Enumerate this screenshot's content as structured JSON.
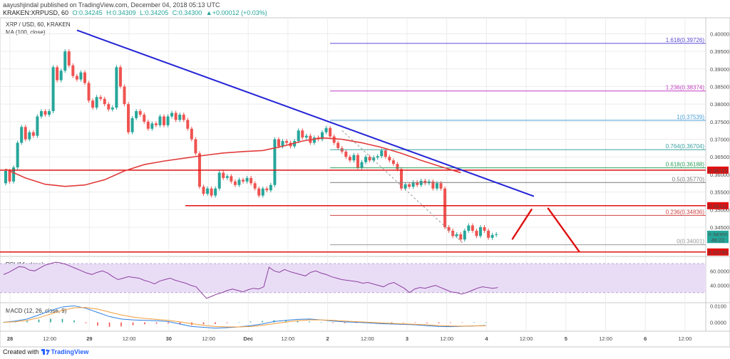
{
  "header": {
    "publisher_line": "aayushjindal published on TradingView.com, December 04, 2018 05:13 UTC",
    "symbol_line": "KRAKEN:XRPUSD, 60",
    "open": "O:0.34245",
    "high": "H:0.34309",
    "low": "L:0.34205",
    "close": "C:0.34300",
    "change": "▲+0.00012 (+0.03%)"
  },
  "legend": {
    "title": "XRP / USD, 60, KRAKEN",
    "ma": "MA (100, close)",
    "rsi": "RSI (14, close)",
    "macd": "MACD (12, 26, close, 9)"
  },
  "footer": {
    "created_with": "Created with",
    "brand": "TradingView"
  },
  "colors": {
    "up": "#26a69a",
    "down": "#ef5350",
    "trendline": "#2323d6",
    "ma": "#e23b3b",
    "support": "#e01010",
    "rsi_band": "#e9ddf6",
    "rsi_line": "#8d3fa0",
    "macd_line": "#2d7fe0",
    "signal_line": "#f39c3a"
  },
  "chart_data": [
    {
      "type": "candlestick",
      "title": "XRP / USD, 60, KRAKEN",
      "x_ticks": [
        "28",
        "12:00",
        "29",
        "12:00",
        "30",
        "12:00",
        "Dec",
        "12:00",
        "2",
        "12:00",
        "3",
        "12:00",
        "4",
        "12:00",
        "5",
        "12:00",
        "6",
        "12:00"
      ],
      "y_ticks": [
        "0.40000",
        "0.39500",
        "0.39000",
        "0.38500",
        "0.38000",
        "0.37500",
        "0.37000",
        "0.36500",
        "0.36000",
        "0.35500",
        "0.35000",
        "0.34500"
      ],
      "ylim": [
        0.3375,
        0.4015
      ],
      "price_labels": [
        {
          "text": "0.36123",
          "value": 0.36123
        },
        {
          "text": "0.35111",
          "value": 0.35111
        },
        {
          "text": "0.34300",
          "value": 0.343
        },
        {
          "text": "46:22",
          "value": 0.3415
        },
        {
          "text": "0.33795",
          "value": 0.33795
        }
      ],
      "fib_levels": [
        {
          "label": "1.618",
          "value": "0.39726"
        },
        {
          "label": "1.236",
          "value": "0.38374"
        },
        {
          "label": "1",
          "value": "0.37539"
        },
        {
          "label": "0.764",
          "value": "0.36704"
        },
        {
          "label": "0.618",
          "value": "0.36188"
        },
        {
          "label": "0.5",
          "value": "0.35770"
        },
        {
          "label": "0.236",
          "value": "0.34836"
        },
        {
          "label": "0",
          "value": "0.34001"
        }
      ],
      "horizontal_lines": [
        0.36123,
        0.35111,
        0.33795
      ],
      "trendline": [
        [
          0.0,
          0.401
        ],
        [
          133.5,
          0.3538
        ]
      ],
      "moving_average": [
        [
          0,
          0.3615
        ],
        [
          5,
          0.359
        ],
        [
          10,
          0.3572
        ],
        [
          15,
          0.3566
        ],
        [
          20,
          0.357
        ],
        [
          25,
          0.3585
        ],
        [
          30,
          0.361
        ],
        [
          35,
          0.3628
        ],
        [
          40,
          0.3638
        ],
        [
          45,
          0.3646
        ],
        [
          50,
          0.3654
        ],
        [
          55,
          0.3661
        ],
        [
          60,
          0.3665
        ],
        [
          65,
          0.3668
        ],
        [
          70,
          0.368
        ],
        [
          75,
          0.3695
        ],
        [
          80,
          0.3704
        ],
        [
          85,
          0.37
        ],
        [
          90,
          0.369
        ],
        [
          95,
          0.3677
        ],
        [
          100,
          0.366
        ],
        [
          105,
          0.364
        ],
        [
          110,
          0.3622
        ],
        [
          115,
          0.3605
        ]
      ],
      "candles": [
        [
          0,
          0.3575,
          0.361
        ],
        [
          1,
          0.361,
          0.358
        ],
        [
          2,
          0.358,
          0.362
        ],
        [
          3,
          0.362,
          0.369
        ],
        [
          4,
          0.369,
          0.3735
        ],
        [
          5,
          0.3735,
          0.37
        ],
        [
          6,
          0.37,
          0.372
        ],
        [
          7,
          0.372,
          0.371
        ],
        [
          8,
          0.371,
          0.3765
        ],
        [
          9,
          0.3765,
          0.378
        ],
        [
          10,
          0.378,
          0.377
        ],
        [
          11,
          0.377,
          0.378
        ],
        [
          12,
          0.378,
          0.3905
        ],
        [
          13,
          0.3905,
          0.3868
        ],
        [
          14,
          0.3868,
          0.3895
        ],
        [
          15,
          0.3895,
          0.395
        ],
        [
          16,
          0.395,
          0.391
        ],
        [
          17,
          0.391,
          0.388
        ],
        [
          18,
          0.388,
          0.387
        ],
        [
          19,
          0.387,
          0.389
        ],
        [
          20,
          0.389,
          0.386
        ],
        [
          21,
          0.386,
          0.381
        ],
        [
          22,
          0.381,
          0.379
        ],
        [
          23,
          0.379,
          0.382
        ],
        [
          24,
          0.382,
          0.3815
        ],
        [
          25,
          0.3815,
          0.38
        ],
        [
          26,
          0.38,
          0.3785
        ],
        [
          27,
          0.3785,
          0.379
        ],
        [
          28,
          0.379,
          0.3905
        ],
        [
          29,
          0.3905,
          0.385
        ],
        [
          30,
          0.385,
          0.38
        ],
        [
          31,
          0.38,
          0.372
        ],
        [
          32,
          0.372,
          0.376
        ],
        [
          33,
          0.376,
          0.378
        ],
        [
          34,
          0.378,
          0.377
        ],
        [
          35,
          0.377,
          0.375
        ],
        [
          36,
          0.375,
          0.373
        ],
        [
          37,
          0.373,
          0.3745
        ],
        [
          38,
          0.3745,
          0.374
        ],
        [
          39,
          0.374,
          0.3765
        ],
        [
          40,
          0.3765,
          0.374
        ],
        [
          41,
          0.374,
          0.3765
        ],
        [
          42,
          0.3765,
          0.3775
        ],
        [
          43,
          0.3775,
          0.3755
        ],
        [
          44,
          0.3755,
          0.377
        ],
        [
          45,
          0.377,
          0.3755
        ],
        [
          46,
          0.3755,
          0.373
        ],
        [
          47,
          0.373,
          0.37
        ],
        [
          48,
          0.37,
          0.366
        ],
        [
          49,
          0.366,
          0.3565
        ],
        [
          50,
          0.3565,
          0.3545
        ],
        [
          51,
          0.3545,
          0.356
        ],
        [
          52,
          0.356,
          0.354
        ],
        [
          53,
          0.354,
          0.356
        ],
        [
          54,
          0.356,
          0.3605
        ],
        [
          55,
          0.3605,
          0.359
        ],
        [
          56,
          0.359,
          0.3595
        ],
        [
          57,
          0.3595,
          0.358
        ],
        [
          58,
          0.358,
          0.357
        ],
        [
          59,
          0.357,
          0.3585
        ],
        [
          60,
          0.3585,
          0.358
        ],
        [
          61,
          0.358,
          0.359
        ],
        [
          62,
          0.359,
          0.3575
        ],
        [
          63,
          0.3575,
          0.356
        ],
        [
          64,
          0.356,
          0.354
        ],
        [
          65,
          0.354,
          0.356
        ],
        [
          66,
          0.356,
          0.3555
        ],
        [
          67,
          0.3555,
          0.357
        ],
        [
          68,
          0.357,
          0.37
        ],
        [
          69,
          0.37,
          0.368
        ],
        [
          70,
          0.368,
          0.3695
        ],
        [
          71,
          0.3695,
          0.369
        ],
        [
          72,
          0.369,
          0.368
        ],
        [
          73,
          0.368,
          0.3695
        ],
        [
          74,
          0.3695,
          0.3725
        ],
        [
          75,
          0.3725,
          0.3705
        ],
        [
          76,
          0.3705,
          0.371
        ],
        [
          77,
          0.371,
          0.369
        ],
        [
          78,
          0.369,
          0.3705
        ],
        [
          79,
          0.3705,
          0.37
        ],
        [
          80,
          0.37,
          0.372
        ],
        [
          81,
          0.372,
          0.3732
        ],
        [
          82,
          0.3732,
          0.3708
        ],
        [
          83,
          0.3708,
          0.369
        ],
        [
          84,
          0.369,
          0.3675
        ],
        [
          85,
          0.3675,
          0.3665
        ],
        [
          86,
          0.3665,
          0.365
        ],
        [
          87,
          0.365,
          0.364
        ],
        [
          88,
          0.364,
          0.3655
        ],
        [
          89,
          0.3655,
          0.362
        ],
        [
          90,
          0.362,
          0.3635
        ],
        [
          91,
          0.3635,
          0.365
        ],
        [
          92,
          0.365,
          0.364
        ],
        [
          93,
          0.364,
          0.3648
        ],
        [
          94,
          0.3648,
          0.3652
        ],
        [
          95,
          0.3652,
          0.3668
        ],
        [
          96,
          0.3668,
          0.365
        ],
        [
          97,
          0.365,
          0.364
        ],
        [
          98,
          0.364,
          0.363
        ],
        [
          99,
          0.363,
          0.3615
        ],
        [
          100,
          0.3615,
          0.356
        ],
        [
          101,
          0.356,
          0.3572
        ],
        [
          102,
          0.3572,
          0.3565
        ],
        [
          103,
          0.3565,
          0.3578
        ],
        [
          104,
          0.3578,
          0.357
        ],
        [
          105,
          0.357,
          0.3582
        ],
        [
          106,
          0.3582,
          0.3575
        ],
        [
          107,
          0.3575,
          0.358
        ],
        [
          108,
          0.358,
          0.356
        ],
        [
          109,
          0.356,
          0.3575
        ],
        [
          110,
          0.3575,
          0.356
        ],
        [
          111,
          0.356,
          0.345
        ],
        [
          112,
          0.345,
          0.344
        ],
        [
          113,
          0.344,
          0.3425
        ],
        [
          114,
          0.3425,
          0.343
        ],
        [
          115,
          0.343,
          0.3415
        ],
        [
          116,
          0.3415,
          0.344
        ],
        [
          117,
          0.344,
          0.3455
        ],
        [
          118,
          0.3455,
          0.344
        ],
        [
          119,
          0.344,
          0.3425
        ],
        [
          120,
          0.3425,
          0.345
        ],
        [
          121,
          0.345,
          0.344
        ],
        [
          122,
          0.344,
          0.342
        ],
        [
          123,
          0.342,
          0.3428
        ],
        [
          124,
          0.3428,
          0.343
        ]
      ],
      "projection_arrows": [
        [
          [
            128,
            0.3415
          ],
          [
            133,
            0.3502
          ]
        ],
        [
          [
            137,
            0.3505
          ],
          [
            145,
            0.338
          ]
        ]
      ],
      "diagonal_dashed": [
        [
          85,
          0.3725
        ],
        [
          116,
          0.34
        ]
      ]
    },
    {
      "type": "line",
      "title": "RSI (14, close)",
      "y_ticks": [
        "60.0000",
        "40.0000"
      ],
      "ylim": [
        18,
        78
      ],
      "band": [
        30,
        70
      ],
      "values": [
        55,
        58,
        62,
        66,
        65,
        61,
        60,
        64,
        68,
        70,
        72,
        71,
        69,
        66,
        63,
        60,
        57,
        55,
        58,
        60,
        57,
        52,
        48,
        50,
        52,
        51,
        50,
        47,
        45,
        42,
        46,
        48,
        50,
        47,
        45,
        43,
        40,
        38,
        30,
        22,
        25,
        28,
        30,
        33,
        35,
        33,
        31,
        34,
        36,
        35,
        38,
        65,
        60,
        58,
        62,
        59,
        57,
        55,
        53,
        58,
        60,
        57,
        55,
        52,
        50,
        48,
        47,
        46,
        45,
        43,
        44,
        42,
        40,
        38,
        42,
        44,
        40,
        36,
        30,
        35,
        37,
        36,
        38,
        40,
        37,
        34,
        31,
        30,
        28,
        30,
        33,
        36,
        38,
        37,
        36,
        37
      ]
    },
    {
      "type": "line",
      "title": "MACD (12, 26, close, 9)",
      "y_ticks": [
        "0.0100",
        "0.0000"
      ],
      "ylim": [
        -0.0045,
        0.011
      ],
      "macd": [
        0.0,
        0.0008,
        0.002,
        0.0045,
        0.0072,
        0.0093,
        0.01,
        0.0085,
        0.006,
        0.0035,
        0.002,
        0.0015,
        0.0012,
        0.001,
        0.0005,
        -0.001,
        -0.0025,
        -0.003,
        -0.0035,
        -0.0032,
        -0.0028,
        -0.002,
        -0.001,
        0.0005,
        0.0012,
        0.0018,
        0.002,
        0.0015,
        0.0008,
        0.0003,
        0.0,
        -0.0003,
        -0.0008,
        -0.001,
        -0.0012,
        -0.0015,
        -0.002,
        -0.0025,
        -0.0026,
        -0.0024,
        -0.0022,
        -0.0019
      ],
      "signal": [
        0.0,
        0.0004,
        0.0012,
        0.0028,
        0.005,
        0.0072,
        0.0088,
        0.009,
        0.008,
        0.0062,
        0.0045,
        0.0032,
        0.0024,
        0.0018,
        0.0012,
        0.0003,
        -0.0008,
        -0.0018,
        -0.0025,
        -0.0028,
        -0.0028,
        -0.0025,
        -0.0018,
        -0.0008,
        0.0002,
        0.001,
        0.0015,
        0.0015,
        0.0012,
        0.0008,
        0.0004,
        0.0001,
        -0.0003,
        -0.0006,
        -0.0009,
        -0.0012,
        -0.0015,
        -0.0019,
        -0.0022,
        -0.0023,
        -0.0022,
        -0.0021
      ]
    }
  ]
}
